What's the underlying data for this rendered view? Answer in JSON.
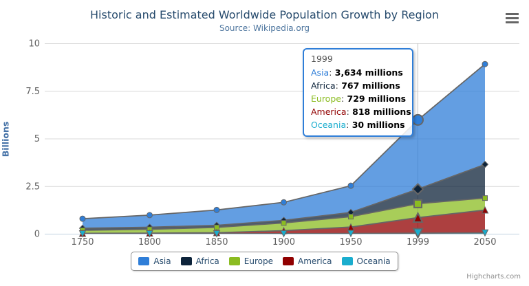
{
  "chart": {
    "title": "Historic and Estimated Worldwide Population Growth by Region",
    "subtitle": "Source: Wikipedia.org",
    "y_axis_title": "Billions",
    "credits": "Highcharts.com",
    "export_menu_icon": "hamburger-icon"
  },
  "chart_data": {
    "type": "area",
    "stacking": "normal",
    "title": "Historic and Estimated Worldwide Population Growth by Region",
    "subtitle": "Source: Wikipedia.org",
    "xlabel": "",
    "ylabel": "Billions",
    "unit": "millions",
    "categories": [
      "1750",
      "1800",
      "1850",
      "1900",
      "1950",
      "1999",
      "2050"
    ],
    "series": [
      {
        "name": "Asia",
        "color": "#2f7ed8",
        "marker": "circle",
        "values": [
          502,
          635,
          809,
          947,
          1402,
          3634,
          5268
        ]
      },
      {
        "name": "Africa",
        "color": "#0d233a",
        "marker": "diamond",
        "values": [
          106,
          107,
          111,
          133,
          221,
          767,
          1766
        ]
      },
      {
        "name": "Europe",
        "color": "#8bbc21",
        "marker": "square",
        "values": [
          163,
          203,
          276,
          408,
          547,
          729,
          628
        ]
      },
      {
        "name": "America",
        "color": "#910000",
        "marker": "triangle",
        "values": [
          18,
          31,
          54,
          156,
          339,
          818,
          1201
        ]
      },
      {
        "name": "Oceania",
        "color": "#1aadce",
        "marker": "triangle-down",
        "values": [
          2,
          2,
          2,
          6,
          13,
          30,
          46
        ]
      }
    ],
    "ylim_millions": [
      0,
      10000
    ],
    "yticks": [
      {
        "value": 0,
        "label": "0"
      },
      {
        "value": 2500,
        "label": "2.5"
      },
      {
        "value": 5000,
        "label": "5"
      },
      {
        "value": 7500,
        "label": "7.5"
      },
      {
        "value": 10000,
        "label": "10"
      }
    ],
    "grid": true,
    "legend_position": "bottom",
    "hovered_category_index": 5,
    "line_color": "#666666",
    "grid_color": "#d8d8d8",
    "axis_line_color": "#c0d0e0",
    "axis_label_color": "#606060",
    "fill_opacity": 0.75
  },
  "tooltip": {
    "header": "1999",
    "rows": [
      {
        "name": "Asia",
        "color": "#2f7ed8",
        "value": "3,634 millions"
      },
      {
        "name": "Africa",
        "color": "#0d233a",
        "value": "767 millions"
      },
      {
        "name": "Europe",
        "color": "#8bbc21",
        "value": "729 millions"
      },
      {
        "name": "America",
        "color": "#910000",
        "value": "818 millions"
      },
      {
        "name": "Oceania",
        "color": "#1aadce",
        "value": "30 millions"
      }
    ],
    "border_color": "#2f7ed8"
  },
  "legend": {
    "items": [
      {
        "label": "Asia",
        "color": "#2f7ed8"
      },
      {
        "label": "Africa",
        "color": "#0d233a"
      },
      {
        "label": "Europe",
        "color": "#8bbc21"
      },
      {
        "label": "America",
        "color": "#910000"
      },
      {
        "label": "Oceania",
        "color": "#1aadce"
      }
    ]
  }
}
